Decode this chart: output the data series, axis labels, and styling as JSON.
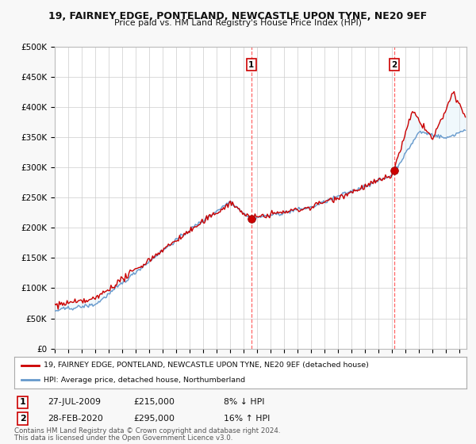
{
  "title": "19, FAIRNEY EDGE, PONTELAND, NEWCASTLE UPON TYNE, NE20 9EF",
  "subtitle": "Price paid vs. HM Land Registry's House Price Index (HPI)",
  "ylabel_ticks": [
    "£0",
    "£50K",
    "£100K",
    "£150K",
    "£200K",
    "£250K",
    "£300K",
    "£350K",
    "£400K",
    "£450K",
    "£500K"
  ],
  "ytick_values": [
    0,
    50000,
    100000,
    150000,
    200000,
    250000,
    300000,
    350000,
    400000,
    450000,
    500000
  ],
  "ylim": [
    0,
    500000
  ],
  "xlim_start": 1995.0,
  "xlim_end": 2025.5,
  "sale1_x": 2009.57,
  "sale1_y": 215000,
  "sale1_label": "1",
  "sale1_date": "27-JUL-2009",
  "sale1_price": "£215,000",
  "sale1_hpi": "8% ↓ HPI",
  "sale2_x": 2020.16,
  "sale2_y": 295000,
  "sale2_label": "2",
  "sale2_date": "28-FEB-2020",
  "sale2_price": "£295,000",
  "sale2_hpi": "16% ↑ HPI",
  "red_line_color": "#cc0000",
  "blue_line_color": "#6699cc",
  "fill_color": "#d0e8f8",
  "vline_color": "#ff6666",
  "marker_color": "#cc0000",
  "legend_label_red": "19, FAIRNEY EDGE, PONTELAND, NEWCASTLE UPON TYNE, NE20 9EF (detached house)",
  "legend_label_blue": "HPI: Average price, detached house, Northumberland",
  "footer1": "Contains HM Land Registry data © Crown copyright and database right 2024.",
  "footer2": "This data is licensed under the Open Government Licence v3.0.",
  "bg_color": "#f0f0f0",
  "plot_bg_color": "#ffffff"
}
